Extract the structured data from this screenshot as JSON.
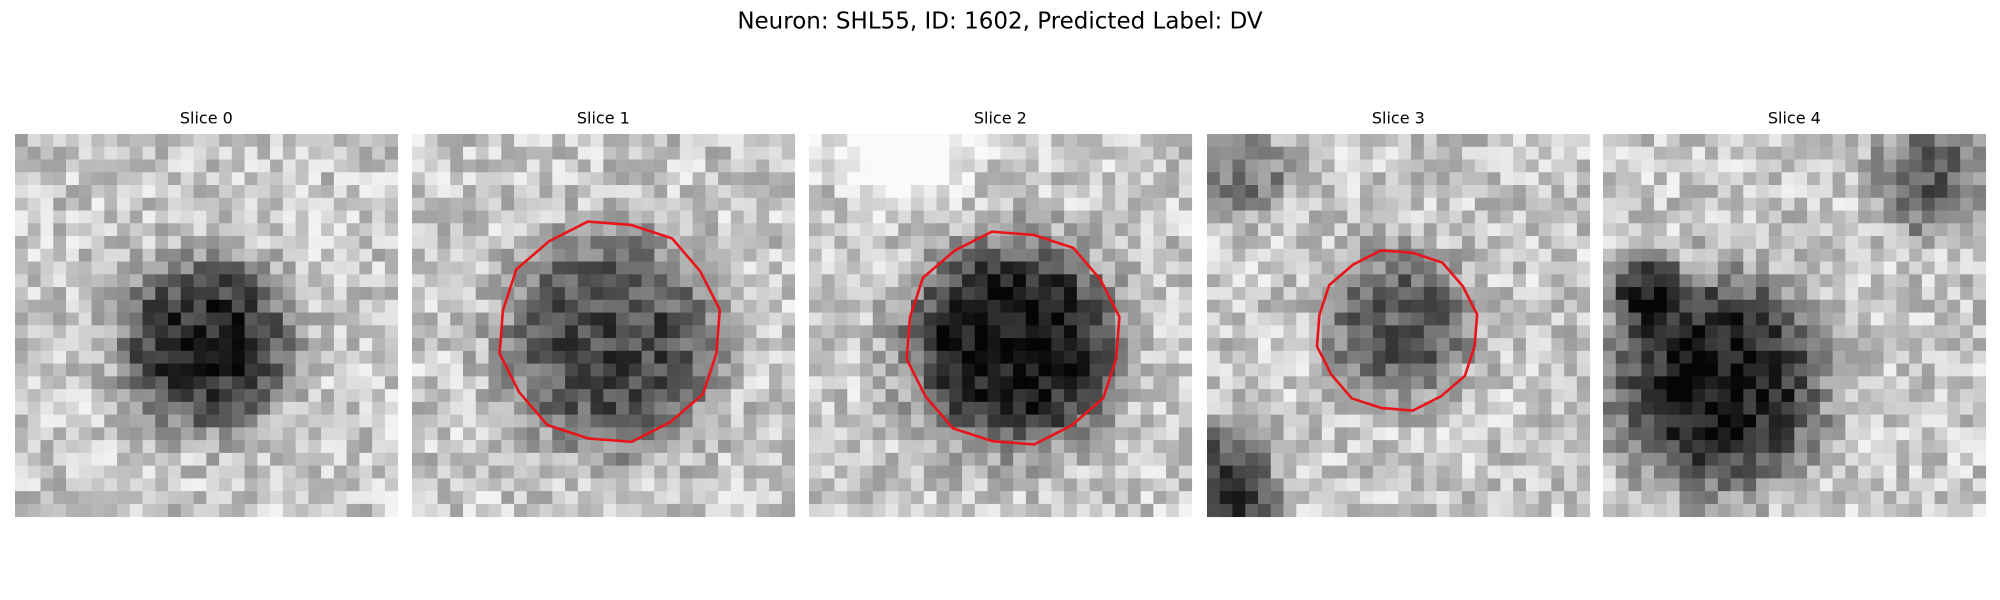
{
  "title": "Neuron: SHL55, ID: 1602, Predicted Label: DV",
  "panels": [
    {
      "label": "Slice 0"
    },
    {
      "label": "Slice 1"
    },
    {
      "label": "Slice 2"
    },
    {
      "label": "Slice 3"
    },
    {
      "label": "Slice 4"
    }
  ]
}
